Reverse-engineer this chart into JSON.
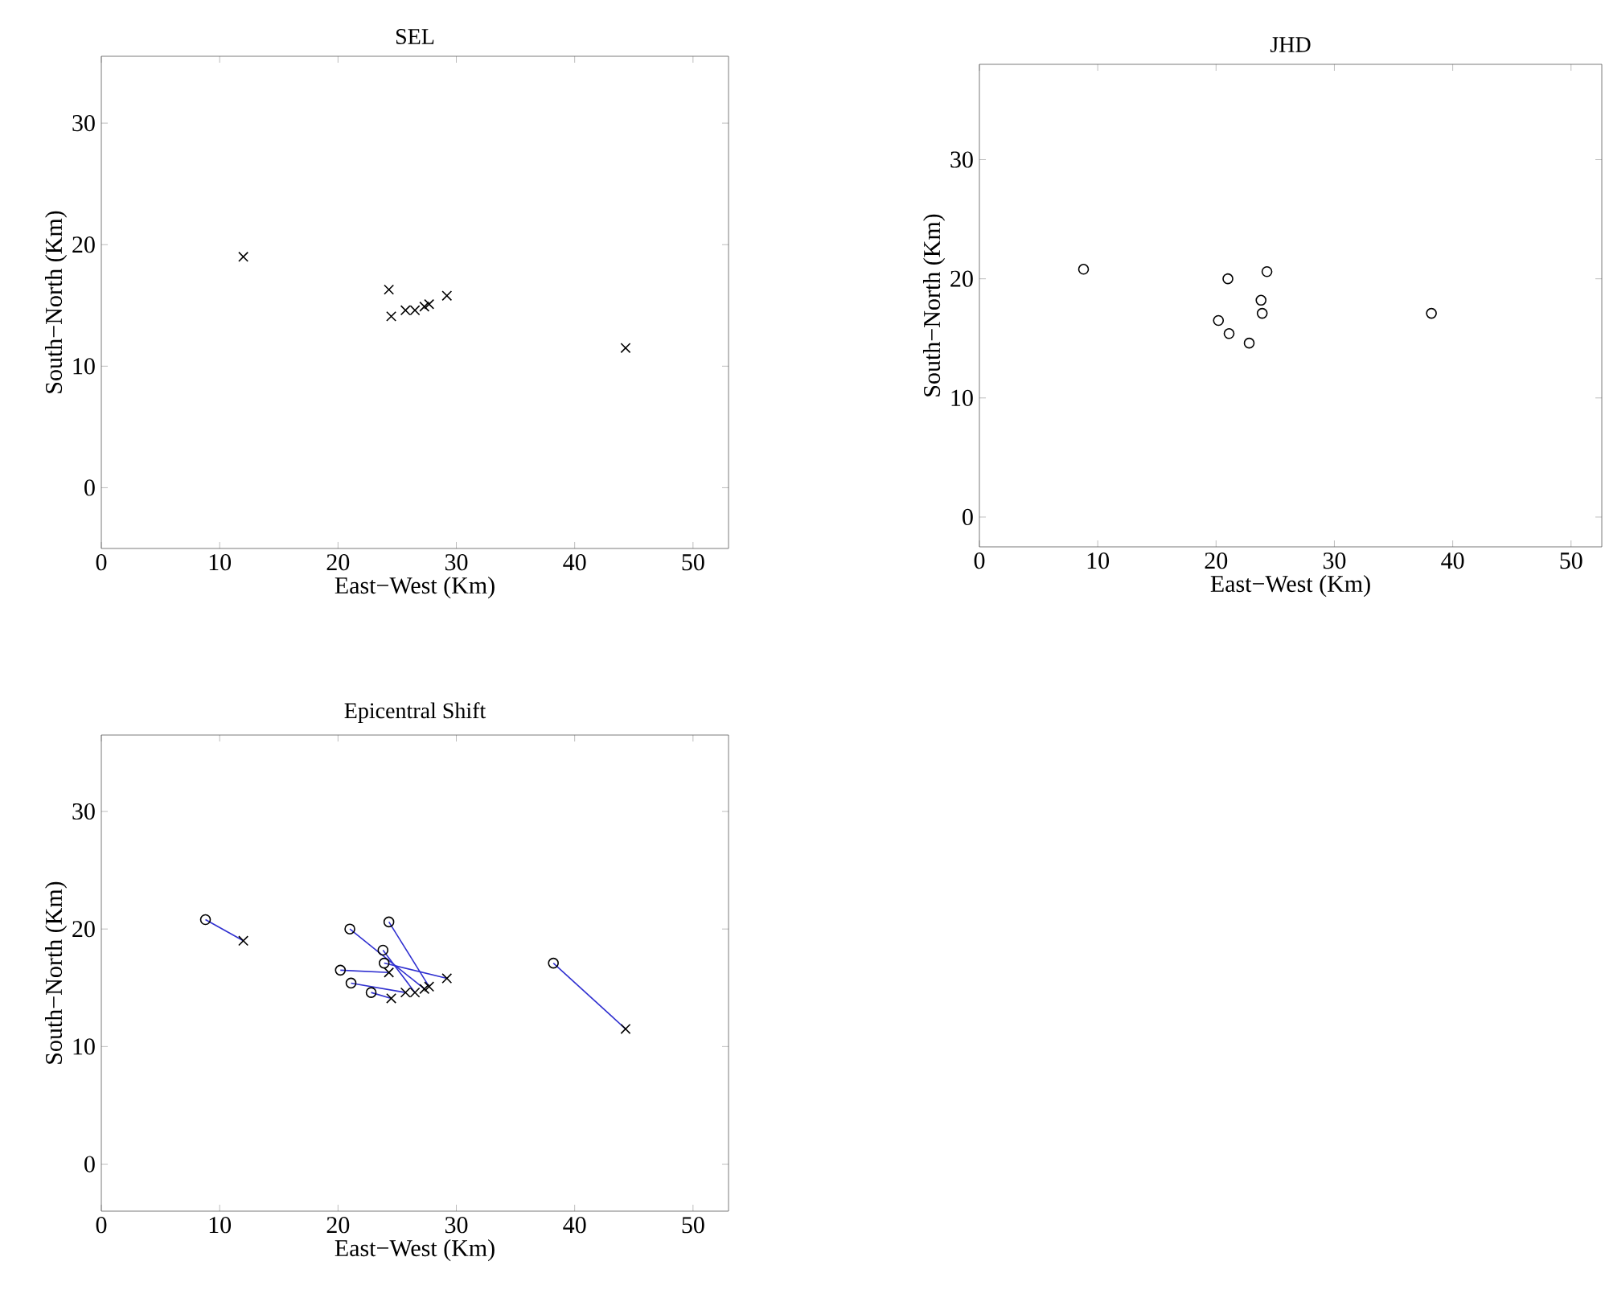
{
  "chart_data": [
    {
      "type": "scatter",
      "title": "SEL",
      "xlabel": "East−West (Km)",
      "ylabel": "South−North (Km)",
      "xlim": [
        0,
        53
      ],
      "ylim": [
        -5,
        35.5
      ],
      "xticks": [
        0,
        10,
        20,
        30,
        40,
        50
      ],
      "yticks": [
        0,
        10,
        20,
        30
      ],
      "marker": "cross",
      "grid": false,
      "series": [
        {
          "color": "#000000",
          "x": [
            12,
            24.3,
            24.5,
            25.7,
            26.5,
            27.3,
            27.7,
            29.2,
            44.3
          ],
          "values": [
            19,
            16.3,
            14.1,
            14.6,
            14.6,
            14.9,
            15.1,
            15.8,
            11.5
          ]
        }
      ]
    },
    {
      "type": "scatter",
      "title": "JHD",
      "xlabel": "East−West (Km)",
      "ylabel": "South−North (Km)",
      "xlim": [
        0,
        52.6
      ],
      "ylim": [
        -2.5,
        38
      ],
      "xticks": [
        0,
        10,
        20,
        30,
        40,
        50
      ],
      "yticks": [
        0,
        10,
        20,
        30
      ],
      "marker": "circle",
      "grid": false,
      "series": [
        {
          "color": "#000000",
          "x": [
            8.8,
            21,
            24.3,
            23.8,
            23.9,
            20.2,
            21.1,
            22.8,
            38.2
          ],
          "values": [
            20.8,
            20,
            20.6,
            18.2,
            17.1,
            16.5,
            15.4,
            14.6,
            17.1
          ]
        }
      ]
    },
    {
      "type": "scatter",
      "title": "Epicentral Shift",
      "xlabel": "East−West (Km)",
      "ylabel": "South−North (Km)",
      "xlim": [
        0,
        53
      ],
      "ylim": [
        -4,
        36.5
      ],
      "xticks": [
        0,
        10,
        20,
        30,
        40,
        50
      ],
      "yticks": [
        0,
        10,
        20,
        30
      ],
      "grid": false,
      "series": [
        {
          "type": "line",
          "color": "#3030d0",
          "marker": "none",
          "x": [
            12,
            8.8
          ],
          "values": [
            19,
            20.8
          ]
        },
        {
          "type": "line",
          "color": "#3030d0",
          "marker": "none",
          "x": [
            44.3,
            38.2
          ],
          "values": [
            11.5,
            17.1
          ]
        },
        {
          "type": "line",
          "color": "#3030d0",
          "marker": "none",
          "x": [
            27.7,
            24.3
          ],
          "values": [
            15.1,
            20.6
          ]
        },
        {
          "type": "line",
          "color": "#3030d0",
          "marker": "none",
          "x": [
            27.3,
            21
          ],
          "values": [
            14.9,
            20
          ]
        },
        {
          "type": "line",
          "color": "#3030d0",
          "marker": "none",
          "x": [
            29.2,
            23.9
          ],
          "values": [
            15.8,
            17.1
          ]
        },
        {
          "type": "line",
          "color": "#3030d0",
          "marker": "none",
          "x": [
            24.3,
            20.2
          ],
          "values": [
            16.3,
            16.5
          ]
        },
        {
          "type": "line",
          "color": "#3030d0",
          "marker": "none",
          "x": [
            26.5,
            23.8
          ],
          "values": [
            14.6,
            18.2
          ]
        },
        {
          "type": "line",
          "color": "#3030d0",
          "marker": "none",
          "x": [
            25.7,
            21.1
          ],
          "values": [
            14.6,
            15.4
          ]
        },
        {
          "type": "line",
          "color": "#3030d0",
          "marker": "none",
          "x": [
            24.5,
            22.8
          ],
          "values": [
            14.1,
            14.6
          ]
        },
        {
          "type": "scatter",
          "color": "#000000",
          "marker": "cross",
          "x": [
            12,
            24.3,
            24.5,
            25.7,
            26.5,
            27.3,
            27.7,
            29.2,
            44.3
          ],
          "values": [
            19,
            16.3,
            14.1,
            14.6,
            14.6,
            14.9,
            15.1,
            15.8,
            11.5
          ]
        },
        {
          "type": "scatter",
          "color": "#000000",
          "marker": "circle",
          "x": [
            8.8,
            21,
            24.3,
            23.8,
            23.9,
            20.2,
            21.1,
            22.8,
            38.2
          ],
          "values": [
            20.8,
            20,
            20.6,
            18.2,
            17.1,
            16.5,
            15.4,
            14.6,
            17.1
          ]
        }
      ]
    }
  ]
}
